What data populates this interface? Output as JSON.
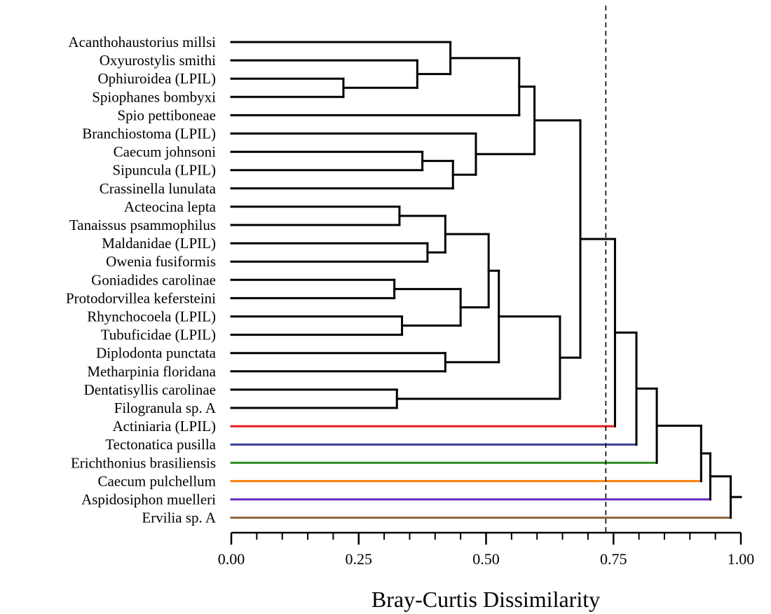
{
  "chart_data": {
    "type": "dendrogram",
    "title": "",
    "xlabel": "Bray-Curtis Dissimilarity",
    "xlim": [
      0,
      1
    ],
    "xticks": [
      "0.00",
      "0.25",
      "0.50",
      "0.75",
      "1.00"
    ],
    "minor_tick_step": 0.05,
    "cutoff": 0.735,
    "leaves": [
      {
        "label": "Acanthohaustorius millsi",
        "color": "#000000"
      },
      {
        "label": "Oxyurostylis smithi",
        "color": "#000000"
      },
      {
        "label": "Ophiuroidea (LPIL)",
        "color": "#000000"
      },
      {
        "label": "Spiophanes bombyxi",
        "color": "#000000"
      },
      {
        "label": "Spio pettiboneae",
        "color": "#000000"
      },
      {
        "label": "Branchiostoma (LPIL)",
        "color": "#000000"
      },
      {
        "label": "Caecum johnsoni",
        "color": "#000000"
      },
      {
        "label": "Sipuncula (LPIL)",
        "color": "#000000"
      },
      {
        "label": "Crassinella lunulata",
        "color": "#000000"
      },
      {
        "label": "Acteocina lepta",
        "color": "#000000"
      },
      {
        "label": "Tanaissus psammophilus",
        "color": "#000000"
      },
      {
        "label": "Maldanidae (LPIL)",
        "color": "#000000"
      },
      {
        "label": "Owenia fusiformis",
        "color": "#000000"
      },
      {
        "label": "Goniadides carolinae",
        "color": "#000000"
      },
      {
        "label": "Protodorvillea kefersteini",
        "color": "#000000"
      },
      {
        "label": "Rhynchocoela (LPIL)",
        "color": "#000000"
      },
      {
        "label": "Tubuficidae (LPIL)",
        "color": "#000000"
      },
      {
        "label": "Diplodonta punctata",
        "color": "#000000"
      },
      {
        "label": "Metharpinia floridana",
        "color": "#000000"
      },
      {
        "label": "Dentatisyllis carolinae",
        "color": "#000000"
      },
      {
        "label": "Filogranula sp. A",
        "color": "#000000"
      },
      {
        "label": "Actiniaria (LPIL)",
        "color": "#e41a1c"
      },
      {
        "label": "Tectonatica pusilla",
        "color": "#3a3d98"
      },
      {
        "label": "Erichthonius brasiliensis",
        "color": "#2e8b20"
      },
      {
        "label": "Caecum pulchellum",
        "color": "#ff7f0e"
      },
      {
        "label": "Aspidosiphon muelleri",
        "color": "#6a2fc2"
      },
      {
        "label": "Ervilia sp. A",
        "color": "#8c6239"
      }
    ],
    "merges": [
      {
        "a": "L3",
        "b": "L4",
        "height": 0.22
      },
      {
        "a": "L2",
        "b": "M1",
        "height": 0.365
      },
      {
        "a": "L1",
        "b": "M2",
        "height": 0.43
      },
      {
        "a": "M3",
        "b": "L5",
        "height": 0.565
      },
      {
        "a": "L7",
        "b": "L8",
        "height": 0.375
      },
      {
        "a": "M5",
        "b": "L9",
        "height": 0.435
      },
      {
        "a": "L6",
        "b": "M6",
        "height": 0.48
      },
      {
        "a": "M4",
        "b": "M7",
        "height": 0.595
      },
      {
        "a": "L10",
        "b": "L11",
        "height": 0.33
      },
      {
        "a": "L12",
        "b": "L13",
        "height": 0.385
      },
      {
        "a": "M9",
        "b": "M10",
        "height": 0.42
      },
      {
        "a": "L14",
        "b": "L15",
        "height": 0.32
      },
      {
        "a": "L16",
        "b": "L17",
        "height": 0.335
      },
      {
        "a": "M12",
        "b": "M13",
        "height": 0.45
      },
      {
        "a": "M11",
        "b": "M14",
        "height": 0.505
      },
      {
        "a": "L18",
        "b": "L19",
        "height": 0.42
      },
      {
        "a": "M15",
        "b": "M16",
        "height": 0.525
      },
      {
        "a": "L20",
        "b": "L21",
        "height": 0.325
      },
      {
        "a": "M17",
        "b": "M18",
        "height": 0.645
      },
      {
        "a": "M8",
        "b": "M19",
        "height": 0.685
      },
      {
        "a": "M20",
        "b": "L22",
        "height": 0.753
      },
      {
        "a": "M21",
        "b": "L23",
        "height": 0.795
      },
      {
        "a": "M22",
        "b": "L24",
        "height": 0.835
      },
      {
        "a": "M23",
        "b": "L25",
        "height": 0.922
      },
      {
        "a": "M24",
        "b": "L26",
        "height": 0.94
      },
      {
        "a": "M25",
        "b": "L27",
        "height": 0.98
      }
    ],
    "root_height": 1.0
  }
}
